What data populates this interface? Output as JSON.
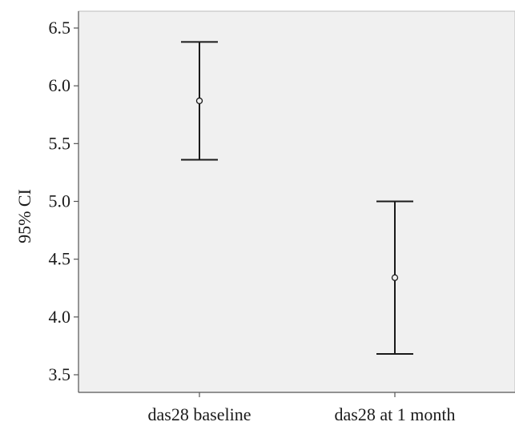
{
  "chart_data": {
    "type": "errorbar",
    "title": "",
    "xlabel": "",
    "ylabel": "95% CI",
    "ylim": [
      3.5,
      6.5
    ],
    "yticks": [
      "3.5",
      "4.0",
      "4.5",
      "5.0",
      "5.5",
      "6.0",
      "6.5"
    ],
    "categories": [
      "das28 baseline",
      "das28 at 1 month"
    ],
    "series": [
      {
        "mean": [
          5.87,
          4.34
        ],
        "lower": [
          5.36,
          3.68
        ],
        "upper": [
          6.38,
          5.0
        ]
      }
    ],
    "grid": false,
    "colors": {
      "plot_background": "#f0f0f0",
      "axis": "#555555",
      "marks": "#1a1a1a"
    }
  }
}
